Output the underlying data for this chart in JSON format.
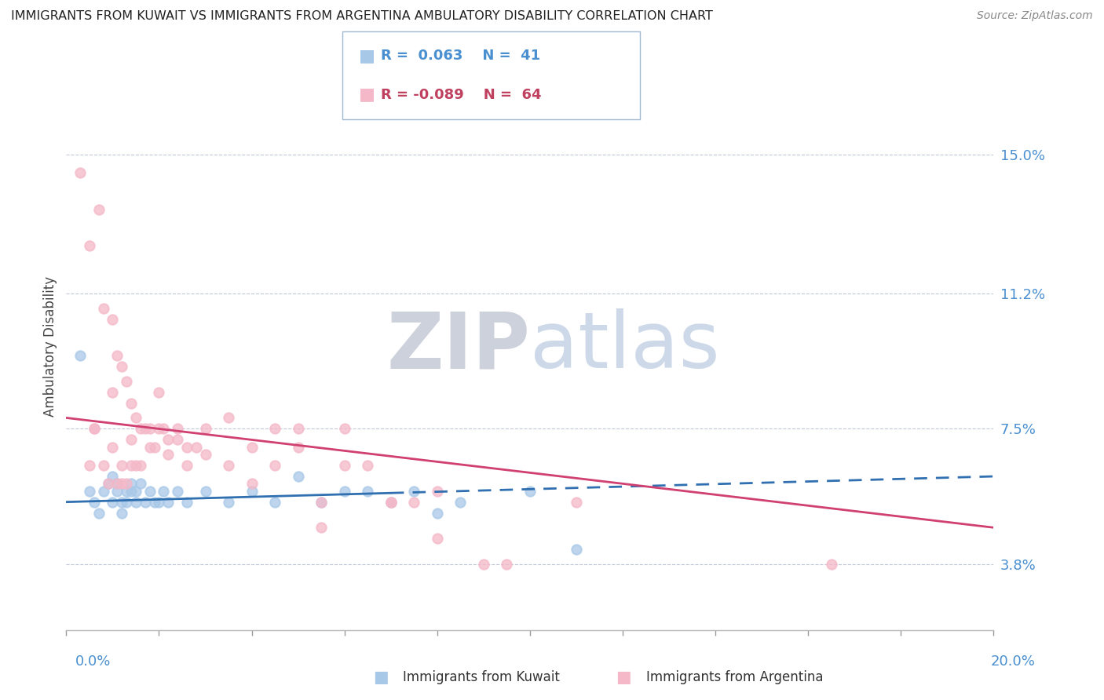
{
  "title": "IMMIGRANTS FROM KUWAIT VS IMMIGRANTS FROM ARGENTINA AMBULATORY DISABILITY CORRELATION CHART",
  "source": "Source: ZipAtlas.com",
  "ylabel": "Ambulatory Disability",
  "ytick_values": [
    3.8,
    7.5,
    11.2,
    15.0
  ],
  "xlim": [
    0.0,
    20.0
  ],
  "ylim": [
    2.0,
    17.5
  ],
  "kuwait_R": 0.063,
  "kuwait_N": 41,
  "argentina_R": -0.089,
  "argentina_N": 64,
  "kuwait_color": "#a8c8e8",
  "argentina_color": "#f4b8c8",
  "kuwait_line_color": "#3070b0",
  "argentina_line_color": "#d04070",
  "watermark_color": "#d8dce8",
  "kuwait_scatter_x": [
    0.3,
    0.5,
    0.6,
    0.7,
    0.8,
    0.9,
    1.0,
    1.0,
    1.1,
    1.1,
    1.2,
    1.2,
    1.3,
    1.3,
    1.4,
    1.4,
    1.5,
    1.5,
    1.6,
    1.7,
    1.8,
    1.9,
    2.0,
    2.1,
    2.2,
    2.4,
    2.6,
    3.0,
    3.5,
    4.0,
    4.5,
    5.0,
    5.5,
    6.0,
    6.5,
    7.0,
    7.5,
    8.0,
    8.5,
    10.0,
    11.0
  ],
  "kuwait_scatter_y": [
    9.5,
    5.8,
    5.5,
    5.2,
    5.8,
    6.0,
    5.5,
    6.2,
    5.8,
    6.0,
    5.5,
    5.2,
    5.8,
    5.5,
    5.8,
    6.0,
    5.5,
    5.8,
    6.0,
    5.5,
    5.8,
    5.5,
    5.5,
    5.8,
    5.5,
    5.8,
    5.5,
    5.8,
    5.5,
    5.8,
    5.5,
    6.2,
    5.5,
    5.8,
    5.8,
    5.5,
    5.8,
    5.2,
    5.5,
    5.8,
    4.2
  ],
  "argentina_scatter_x": [
    0.3,
    0.5,
    0.6,
    0.7,
    0.8,
    0.9,
    1.0,
    1.0,
    1.1,
    1.1,
    1.2,
    1.2,
    1.3,
    1.3,
    1.4,
    1.4,
    1.5,
    1.5,
    1.6,
    1.7,
    1.8,
    1.9,
    2.0,
    2.1,
    2.2,
    2.4,
    2.6,
    3.0,
    3.5,
    4.0,
    4.5,
    5.0,
    5.5,
    6.0,
    6.5,
    7.0,
    7.5,
    8.0,
    9.5,
    11.0,
    16.5,
    0.5,
    0.6,
    0.8,
    1.0,
    1.2,
    1.4,
    1.6,
    1.8,
    2.0,
    2.2,
    2.4,
    2.6,
    2.8,
    3.0,
    3.5,
    4.0,
    4.5,
    5.0,
    5.5,
    6.0,
    7.0,
    8.0,
    9.0
  ],
  "argentina_scatter_y": [
    14.5,
    12.5,
    7.5,
    13.5,
    10.8,
    6.0,
    10.5,
    8.5,
    9.5,
    6.0,
    9.2,
    6.0,
    8.8,
    6.0,
    8.2,
    6.5,
    7.8,
    6.5,
    7.5,
    7.5,
    7.5,
    7.0,
    8.5,
    7.5,
    7.2,
    7.5,
    7.0,
    7.5,
    7.8,
    7.0,
    7.5,
    7.5,
    5.5,
    7.5,
    6.5,
    5.5,
    5.5,
    5.8,
    3.8,
    5.5,
    3.8,
    6.5,
    7.5,
    6.5,
    7.0,
    6.5,
    7.2,
    6.5,
    7.0,
    7.5,
    6.8,
    7.2,
    6.5,
    7.0,
    6.8,
    6.5,
    6.0,
    6.5,
    7.0,
    4.8,
    6.5,
    5.5,
    4.5,
    3.8
  ]
}
